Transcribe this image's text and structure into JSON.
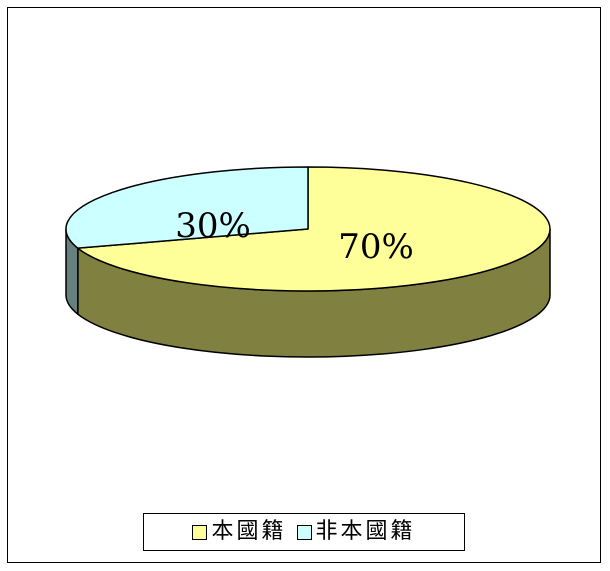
{
  "chart_data": {
    "type": "pie",
    "style": "3d",
    "categories": [
      "本國籍",
      "非本國籍"
    ],
    "values": [
      70,
      30
    ],
    "data_labels": [
      "70%",
      "30%"
    ],
    "colors": {
      "top": [
        "#FFFF99",
        "#CCFFFF"
      ],
      "side": [
        "#808040",
        "#667F7F"
      ]
    },
    "legend_position": "bottom"
  }
}
